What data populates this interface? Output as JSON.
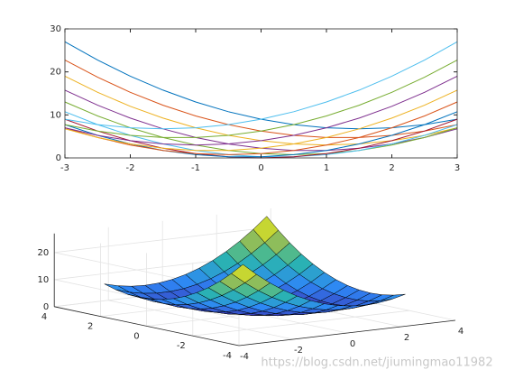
{
  "chart_data": [
    {
      "type": "line",
      "x": [
        -3,
        -2.5,
        -2,
        -1.5,
        -1,
        -0.5,
        0,
        0.5,
        1,
        1.5,
        2,
        2.5,
        3
      ],
      "series": [
        {
          "color": "#0072bd",
          "values": [
            27,
            22.75,
            19,
            15.75,
            13,
            10.75,
            9,
            7.75,
            7,
            6.75,
            7,
            7.75,
            9
          ]
        },
        {
          "color": "#d95319",
          "values": [
            22.75,
            18.75,
            15.25,
            12.25,
            9.75,
            7.75,
            6.25,
            5.25,
            4.75,
            4.75,
            5.25,
            6.25,
            7.75
          ]
        },
        {
          "color": "#edb120",
          "values": [
            19,
            15.25,
            12,
            9.25,
            7,
            5.25,
            4,
            3.25,
            3,
            3.25,
            4,
            5.25,
            7
          ]
        },
        {
          "color": "#7e2f8e",
          "values": [
            15.75,
            12.25,
            9.25,
            6.75,
            4.75,
            3.25,
            2.25,
            1.75,
            1.75,
            2.25,
            3.25,
            4.75,
            6.75
          ]
        },
        {
          "color": "#77ac30",
          "values": [
            13,
            9.75,
            7,
            4.75,
            3,
            1.75,
            1,
            0.75,
            1,
            1.75,
            3,
            4.75,
            7
          ]
        },
        {
          "color": "#4dbeee",
          "values": [
            10.75,
            7.75,
            5.25,
            3.25,
            1.75,
            0.75,
            0.25,
            0.25,
            0.75,
            1.75,
            3.25,
            5.25,
            7.75
          ]
        },
        {
          "color": "#a2142f",
          "values": [
            9,
            6.25,
            4,
            2.25,
            1,
            0.25,
            0,
            0.25,
            1,
            2.25,
            4,
            6.25,
            9
          ]
        },
        {
          "color": "#0072bd",
          "values": [
            7.75,
            5.25,
            3.25,
            1.75,
            0.75,
            0.25,
            0.25,
            0.75,
            1.75,
            3.25,
            5.25,
            7.75,
            10.75
          ]
        },
        {
          "color": "#d95319",
          "values": [
            7,
            4.75,
            3,
            1.75,
            1,
            0.75,
            1,
            1.75,
            3,
            4.75,
            7,
            9.75,
            13
          ]
        },
        {
          "color": "#edb120",
          "values": [
            6.75,
            4.75,
            3.25,
            2.25,
            1.75,
            1.75,
            2.25,
            3.25,
            4.75,
            6.75,
            9.25,
            12.25,
            15.75
          ]
        },
        {
          "color": "#7e2f8e",
          "values": [
            7,
            5.25,
            4,
            3.25,
            3,
            3.25,
            4,
            5.25,
            7,
            9.25,
            12,
            15.25,
            19
          ]
        },
        {
          "color": "#77ac30",
          "values": [
            7.75,
            6.25,
            5.25,
            4.75,
            4.75,
            5.25,
            6.25,
            7.75,
            9.75,
            12.25,
            15.25,
            18.75,
            22.75
          ]
        },
        {
          "color": "#4dbeee",
          "values": [
            9,
            7.75,
            7,
            6.75,
            7,
            7.75,
            9,
            10.75,
            13,
            15.75,
            19,
            22.75,
            27
          ]
        }
      ],
      "xlim": [
        -3,
        3
      ],
      "ylim": [
        0,
        30
      ],
      "xticks": [
        -3,
        -2,
        -1,
        0,
        1,
        2,
        3
      ],
      "yticks": [
        0,
        10,
        20,
        30
      ]
    },
    {
      "type": "surface",
      "x": [
        -3,
        -2.5,
        -2,
        -1.5,
        -1,
        -0.5,
        0,
        0.5,
        1,
        1.5,
        2,
        2.5,
        3
      ],
      "y": [
        -3,
        -2.5,
        -2,
        -1.5,
        -1,
        -0.5,
        0,
        0.5,
        1,
        1.5,
        2,
        2.5,
        3
      ],
      "z": [
        [
          27,
          22.75,
          19,
          15.75,
          13,
          10.75,
          9,
          7.75,
          7,
          6.75,
          7,
          7.75,
          9
        ],
        [
          22.75,
          18.75,
          15.25,
          12.25,
          9.75,
          7.75,
          6.25,
          5.25,
          4.75,
          4.75,
          5.25,
          6.25,
          7.75
        ],
        [
          19,
          15.25,
          12,
          9.25,
          7,
          5.25,
          4,
          3.25,
          3,
          3.25,
          4,
          5.25,
          7
        ],
        [
          15.75,
          12.25,
          9.25,
          6.75,
          4.75,
          3.25,
          2.25,
          1.75,
          1.75,
          2.25,
          3.25,
          4.75,
          6.75
        ],
        [
          13,
          9.75,
          7,
          4.75,
          3,
          1.75,
          1,
          0.75,
          1,
          1.75,
          3,
          4.75,
          7
        ],
        [
          10.75,
          7.75,
          5.25,
          3.25,
          1.75,
          0.75,
          0.25,
          0.25,
          0.75,
          1.75,
          3.25,
          5.25,
          7.75
        ],
        [
          9,
          6.25,
          4,
          2.25,
          1,
          0.25,
          0,
          0.25,
          1,
          2.25,
          4,
          6.25,
          9
        ],
        [
          7.75,
          5.25,
          3.25,
          1.75,
          0.75,
          0.25,
          0.25,
          0.75,
          1.75,
          3.25,
          5.25,
          7.75,
          10.75
        ],
        [
          7,
          4.75,
          3,
          1.75,
          1,
          0.75,
          1,
          1.75,
          3,
          4.75,
          7,
          9.75,
          13
        ],
        [
          6.75,
          4.75,
          3.25,
          2.25,
          1.75,
          1.75,
          2.25,
          3.25,
          4.75,
          6.75,
          9.25,
          12.25,
          15.75
        ],
        [
          7,
          5.25,
          4,
          3.25,
          3,
          3.25,
          4,
          5.25,
          7,
          9.25,
          12,
          15.25,
          19
        ],
        [
          7.75,
          6.25,
          5.25,
          4.75,
          4.75,
          5.25,
          6.25,
          7.75,
          9.75,
          12.25,
          15.25,
          18.75,
          22.75
        ],
        [
          9,
          7.75,
          7,
          6.75,
          7,
          7.75,
          9,
          10.75,
          13,
          15.75,
          19,
          22.75,
          27
        ]
      ],
      "xlim": [
        -4,
        4
      ],
      "ylim": [
        -4,
        4
      ],
      "zlim": [
        0,
        27
      ],
      "xticks": [
        -4,
        -2,
        0,
        2,
        4
      ],
      "yticks": [
        -4,
        -2,
        0,
        2,
        4
      ],
      "zticks": [
        0,
        10,
        20
      ]
    }
  ],
  "watermark": "https://blog.csdn.net/jiumingmao11982"
}
